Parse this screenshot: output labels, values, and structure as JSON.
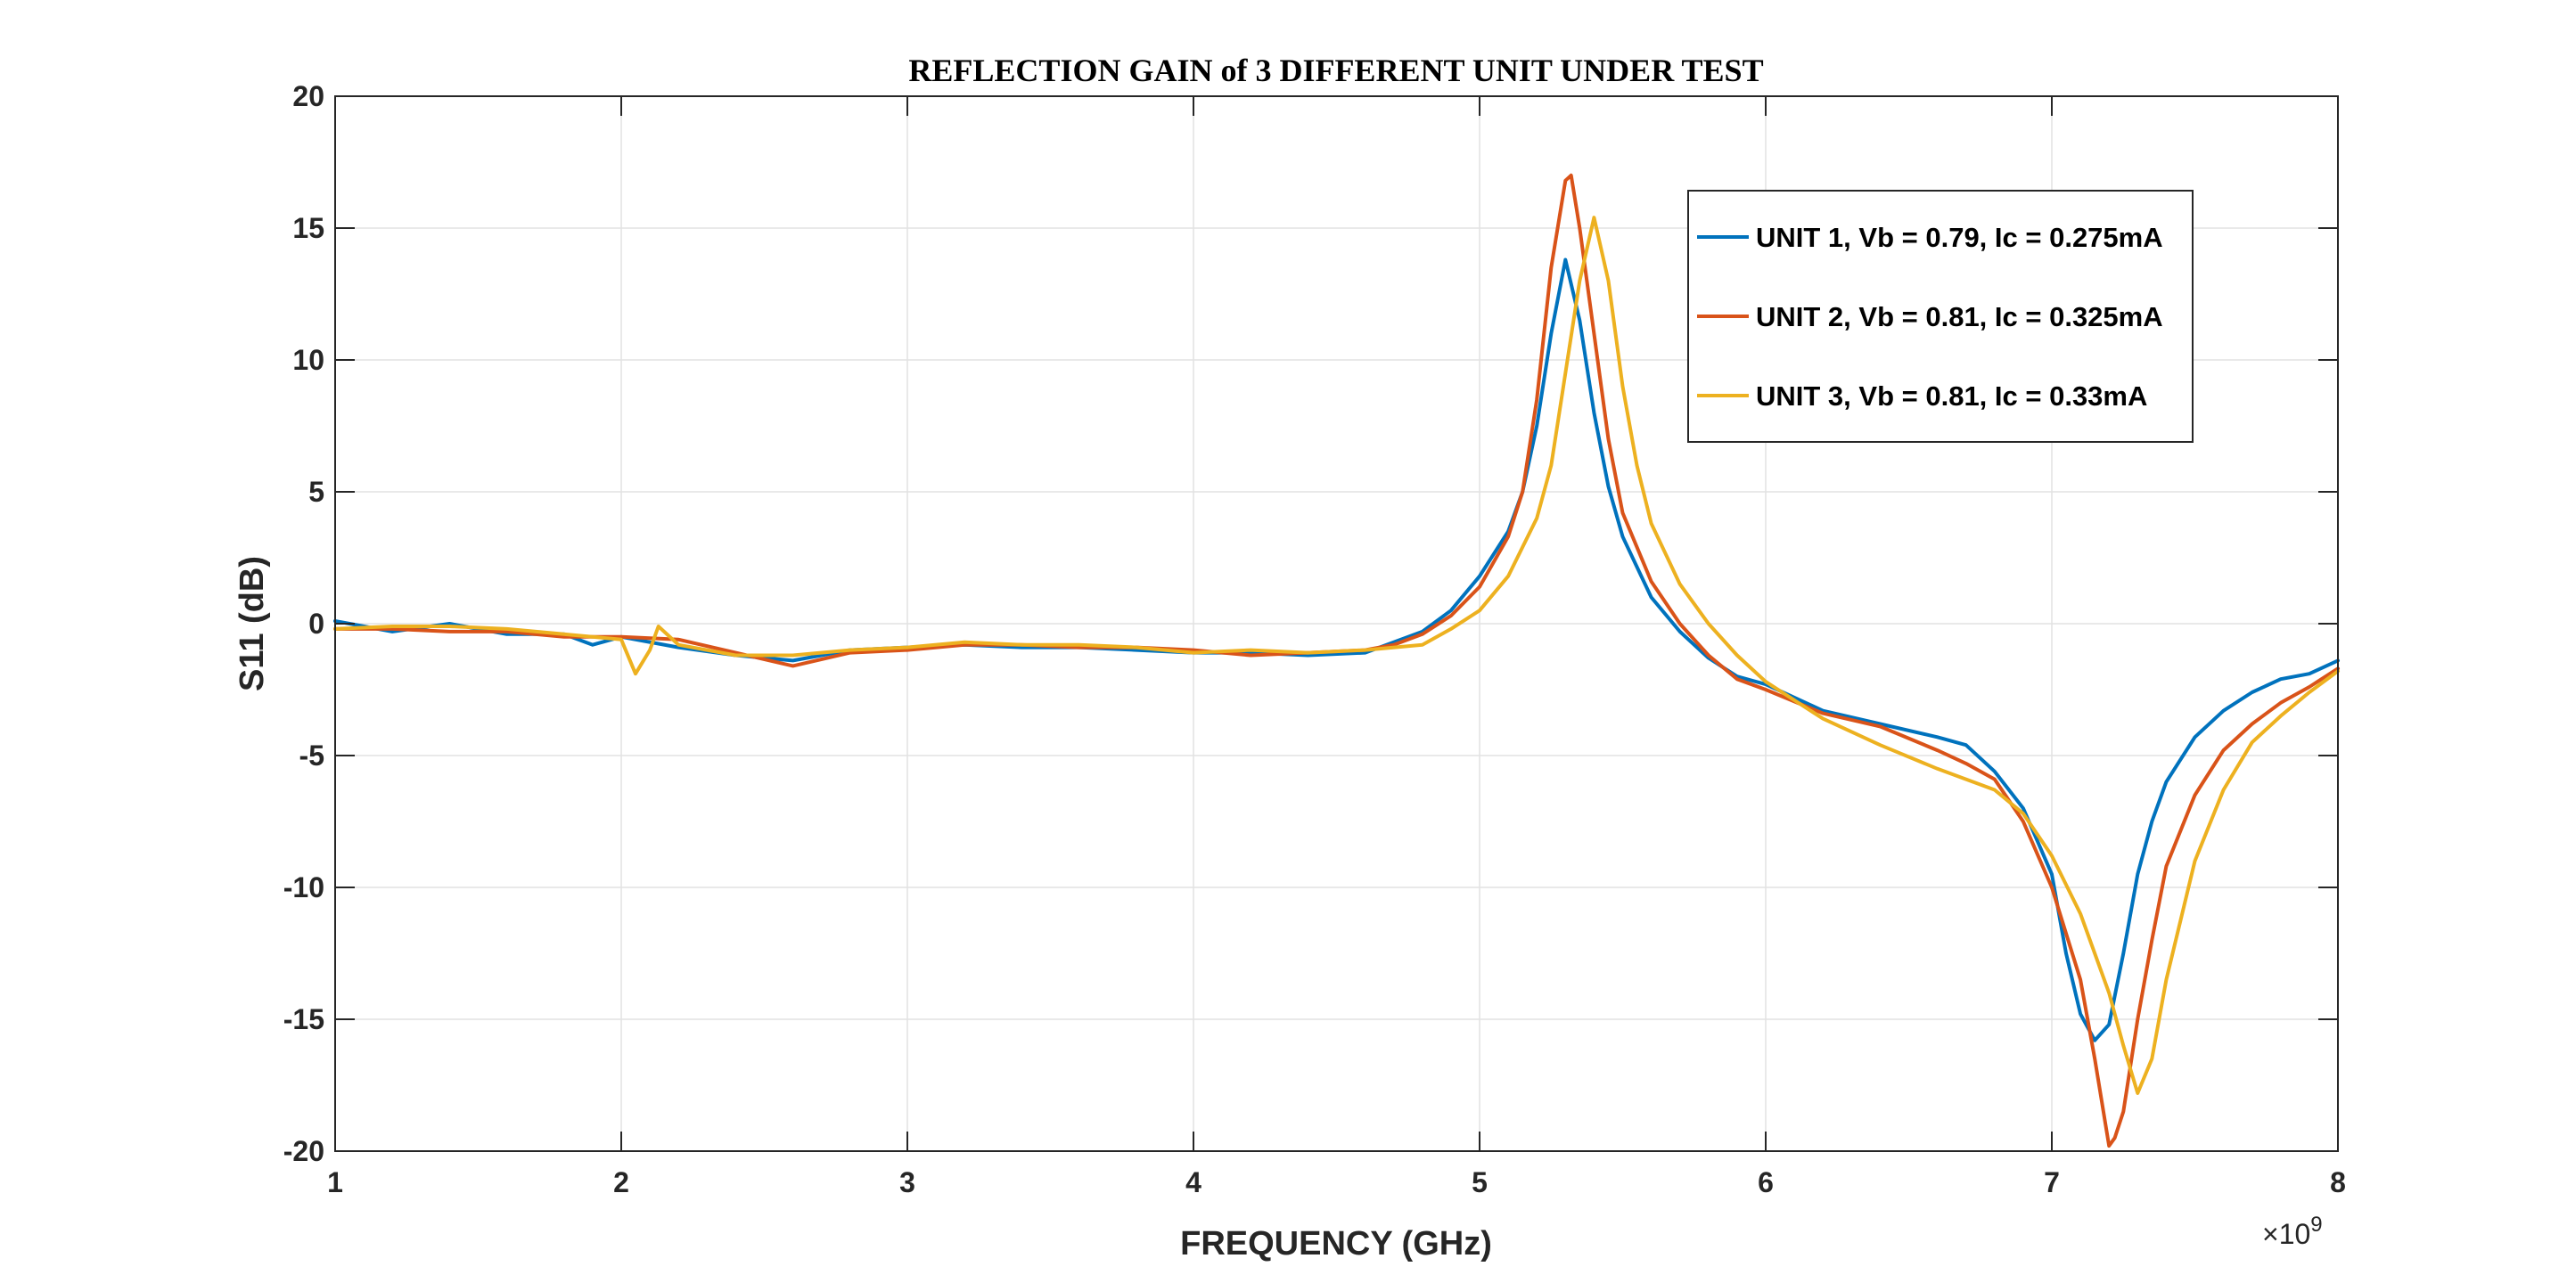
{
  "chart_data": {
    "type": "line",
    "title": "REFLECTION GAIN of 3 DIFFERENT UNIT UNDER TEST",
    "xlabel": "FREQUENCY (GHz)",
    "ylabel": "S11 (dB)",
    "x_exponent_base": "×10",
    "x_exponent_power": "9",
    "xlim": [
      1,
      8
    ],
    "ylim": [
      -20,
      20
    ],
    "xticks": [
      1,
      2,
      3,
      4,
      5,
      6,
      7,
      8
    ],
    "xtick_labels": [
      "1",
      "2",
      "3",
      "4",
      "5",
      "6",
      "7",
      "8"
    ],
    "yticks": [
      -20,
      -15,
      -10,
      -5,
      0,
      5,
      10,
      15,
      20
    ],
    "ytick_labels": [
      "-20",
      "-15",
      "-10",
      "-5",
      "0",
      "5",
      "10",
      "15",
      "20"
    ],
    "grid": true,
    "legend_position": "top-right",
    "series": [
      {
        "name": "UNIT 1, Vb = 0.79, Ic = 0.275mA",
        "color": "#0072BD",
        "x": [
          1.0,
          1.2,
          1.4,
          1.6,
          1.8,
          1.9,
          2.0,
          2.2,
          2.4,
          2.6,
          2.8,
          3.0,
          3.2,
          3.4,
          3.6,
          3.8,
          4.0,
          4.2,
          4.4,
          4.6,
          4.7,
          4.8,
          4.9,
          5.0,
          5.1,
          5.15,
          5.2,
          5.25,
          5.3,
          5.35,
          5.4,
          5.45,
          5.5,
          5.6,
          5.7,
          5.8,
          5.9,
          6.0,
          6.2,
          6.4,
          6.6,
          6.7,
          6.8,
          6.9,
          7.0,
          7.05,
          7.1,
          7.15,
          7.2,
          7.25,
          7.3,
          7.35,
          7.4,
          7.5,
          7.6,
          7.7,
          7.8,
          7.9,
          8.0
        ],
        "y": [
          0.1,
          -0.3,
          0.0,
          -0.4,
          -0.4,
          -0.8,
          -0.5,
          -0.9,
          -1.2,
          -1.4,
          -1.0,
          -0.9,
          -0.8,
          -0.9,
          -0.9,
          -1.0,
          -1.1,
          -1.1,
          -1.2,
          -1.1,
          -0.7,
          -0.3,
          0.5,
          1.8,
          3.5,
          5.0,
          7.5,
          11.0,
          13.8,
          11.5,
          8.0,
          5.2,
          3.3,
          1.0,
          -0.3,
          -1.3,
          -2.0,
          -2.3,
          -3.3,
          -3.8,
          -4.3,
          -4.6,
          -5.6,
          -7.0,
          -9.5,
          -12.5,
          -14.8,
          -15.8,
          -15.2,
          -12.5,
          -9.5,
          -7.5,
          -6.0,
          -4.3,
          -3.3,
          -2.6,
          -2.1,
          -1.9,
          -1.4
        ]
      },
      {
        "name": "UNIT 2, Vb = 0.81, Ic = 0.325mA",
        "color": "#D95319",
        "x": [
          1.0,
          1.2,
          1.4,
          1.6,
          1.8,
          2.0,
          2.2,
          2.4,
          2.6,
          2.8,
          3.0,
          3.2,
          3.4,
          3.6,
          3.8,
          4.0,
          4.2,
          4.4,
          4.6,
          4.7,
          4.8,
          4.9,
          5.0,
          5.1,
          5.15,
          5.2,
          5.25,
          5.3,
          5.32,
          5.35,
          5.4,
          5.45,
          5.5,
          5.6,
          5.7,
          5.8,
          5.9,
          6.0,
          6.2,
          6.4,
          6.6,
          6.7,
          6.8,
          6.9,
          7.0,
          7.1,
          7.15,
          7.2,
          7.22,
          7.25,
          7.3,
          7.35,
          7.4,
          7.5,
          7.6,
          7.7,
          7.8,
          7.9,
          8.0
        ],
        "y": [
          -0.2,
          -0.2,
          -0.3,
          -0.3,
          -0.5,
          -0.5,
          -0.6,
          -1.1,
          -1.6,
          -1.1,
          -1.0,
          -0.8,
          -0.8,
          -0.9,
          -0.9,
          -1.0,
          -1.2,
          -1.1,
          -1.0,
          -0.8,
          -0.4,
          0.3,
          1.4,
          3.3,
          5.0,
          8.5,
          13.5,
          16.8,
          17.0,
          15.0,
          11.0,
          7.0,
          4.2,
          1.6,
          0.0,
          -1.2,
          -2.1,
          -2.5,
          -3.4,
          -3.9,
          -4.8,
          -5.3,
          -5.9,
          -7.5,
          -10.0,
          -13.5,
          -16.5,
          -19.8,
          -19.5,
          -18.5,
          -15.0,
          -12.0,
          -9.2,
          -6.5,
          -4.8,
          -3.8,
          -3.0,
          -2.4,
          -1.7
        ]
      },
      {
        "name": "UNIT 3, Vb = 0.81, Ic = 0.33mA",
        "color": "#EDB120",
        "x": [
          1.0,
          1.2,
          1.4,
          1.6,
          1.8,
          2.0,
          2.05,
          2.1,
          2.13,
          2.2,
          2.4,
          2.6,
          2.8,
          3.0,
          3.2,
          3.4,
          3.6,
          3.8,
          4.0,
          4.2,
          4.4,
          4.6,
          4.8,
          4.9,
          5.0,
          5.1,
          5.2,
          5.25,
          5.3,
          5.35,
          5.4,
          5.45,
          5.5,
          5.55,
          5.6,
          5.7,
          5.8,
          5.9,
          6.0,
          6.2,
          6.4,
          6.6,
          6.8,
          6.9,
          7.0,
          7.1,
          7.2,
          7.25,
          7.3,
          7.35,
          7.4,
          7.5,
          7.6,
          7.7,
          7.8,
          7.9,
          8.0
        ],
        "y": [
          -0.2,
          -0.1,
          -0.1,
          -0.2,
          -0.4,
          -0.6,
          -1.9,
          -1.0,
          -0.1,
          -0.8,
          -1.2,
          -1.2,
          -1.0,
          -0.9,
          -0.7,
          -0.8,
          -0.8,
          -0.9,
          -1.1,
          -1.0,
          -1.1,
          -1.0,
          -0.8,
          -0.2,
          0.5,
          1.8,
          4.0,
          6.0,
          9.5,
          13.0,
          15.4,
          13.0,
          9.0,
          6.0,
          3.8,
          1.5,
          0.0,
          -1.2,
          -2.2,
          -3.6,
          -4.6,
          -5.5,
          -6.3,
          -7.2,
          -8.8,
          -11.0,
          -14.0,
          -16.0,
          -17.8,
          -16.5,
          -13.5,
          -9.0,
          -6.3,
          -4.5,
          -3.5,
          -2.6,
          -1.8
        ]
      }
    ]
  }
}
